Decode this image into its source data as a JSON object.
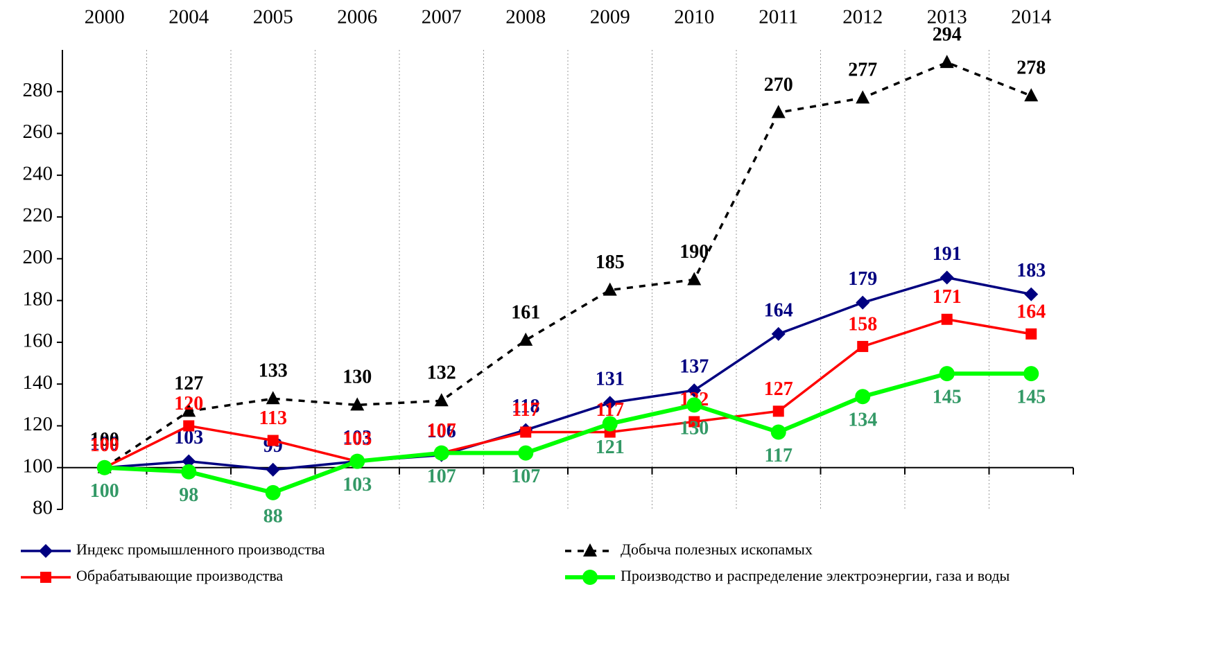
{
  "chart_data": {
    "type": "line",
    "categories": [
      "2000",
      "2004",
      "2005",
      "2006",
      "2007",
      "2008",
      "2009",
      "2010",
      "2011",
      "2012",
      "2013",
      "2014"
    ],
    "ylim": [
      80,
      300
    ],
    "yticks": [
      80,
      100,
      120,
      140,
      160,
      180,
      200,
      220,
      240,
      260,
      280
    ],
    "grid": "vertical",
    "legend": "bottom",
    "series": [
      {
        "name": "Индекс промышленного производства",
        "color": "#000080",
        "label_color": "#000080",
        "marker": "diamond",
        "dash": false,
        "values": [
          100,
          103,
          99,
          103,
          106,
          118,
          131,
          137,
          164,
          179,
          191,
          183
        ]
      },
      {
        "name": "Добыча полезных ископамых",
        "color": "#000000",
        "label_color": "#000000",
        "marker": "triangle",
        "dash": true,
        "values": [
          100,
          127,
          133,
          130,
          132,
          161,
          185,
          190,
          270,
          277,
          294,
          278
        ]
      },
      {
        "name": "Обрабатывающие производства",
        "color": "#ff0000",
        "label_color": "#ff0000",
        "marker": "square",
        "dash": false,
        "values": [
          100,
          120,
          113,
          103,
          107,
          117,
          117,
          122,
          127,
          158,
          171,
          164
        ]
      },
      {
        "name": "Производство и распределение электроэнергии, газа и воды",
        "color": "#00ff00",
        "label_color": "#339966",
        "marker": "circle",
        "dash": false,
        "values": [
          100,
          98,
          88,
          103,
          107,
          107,
          121,
          130,
          117,
          134,
          145,
          145
        ]
      }
    ]
  }
}
